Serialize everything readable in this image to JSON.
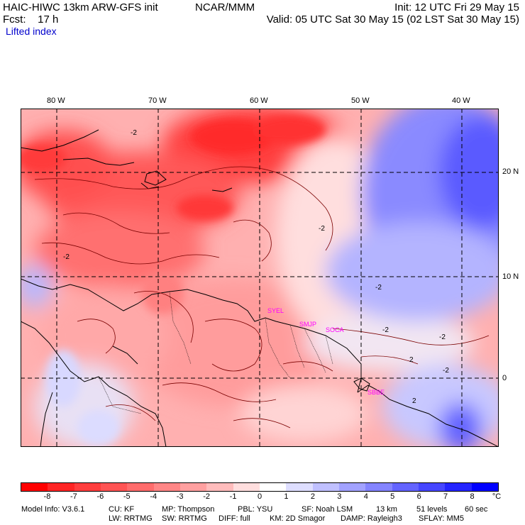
{
  "header": {
    "model": "HAIC-HIWC 13km ARW-GFS init",
    "center": "NCAR/MMM",
    "init": "Init: 12 UTC Fri 29 May 15",
    "fcst": "Fcst:    17 h",
    "valid": "Valid: 05 UTC Sat 30 May 15 (02 LST Sat 30 May 15)",
    "field": "Lifted index"
  },
  "map": {
    "lon_labels": [
      "80 W",
      "70 W",
      "60 W",
      "50 W",
      "40 W"
    ],
    "lat_labels": [
      "20 N",
      "10 N",
      "0"
    ],
    "stations": [
      "SYEL",
      "SMJP",
      "SOCA",
      "SBBE"
    ],
    "contour_labels": [
      "-2",
      "-2",
      "-2",
      "-2",
      "-2",
      "-2",
      "-2",
      "2",
      "2"
    ]
  },
  "colorbar": {
    "unit": "°C",
    "ticks": [
      "-8",
      "-7",
      "-6",
      "-5",
      "-4",
      "-3",
      "-2",
      "-1",
      "0",
      "1",
      "2",
      "3",
      "4",
      "5",
      "6",
      "7",
      "8"
    ],
    "colors": [
      "#ff0000",
      "#ff2424",
      "#ff3e3e",
      "#ff5454",
      "#ff6c6c",
      "#ff8686",
      "#ffa0a0",
      "#ffbcbc",
      "#ffdede",
      "#ffffff",
      "#dedeff",
      "#c0c0ff",
      "#a2a2ff",
      "#8484ff",
      "#6464ff",
      "#4646ff",
      "#2424ff",
      "#0000ff"
    ]
  },
  "footer": {
    "line1": [
      "Model Info: V3.6.1",
      "CU: KF",
      "MP: Thompson",
      "PBL: YSU",
      "SF: Noah LSM",
      "13 km",
      "51 levels",
      "60 sec"
    ],
    "line2": [
      "LW: RRTMG",
      "SW: RRTMG",
      "DIFF: full",
      "KM: 2D Smagor",
      "DAMP: Rayleigh3",
      "SFLAY: MM5"
    ]
  }
}
